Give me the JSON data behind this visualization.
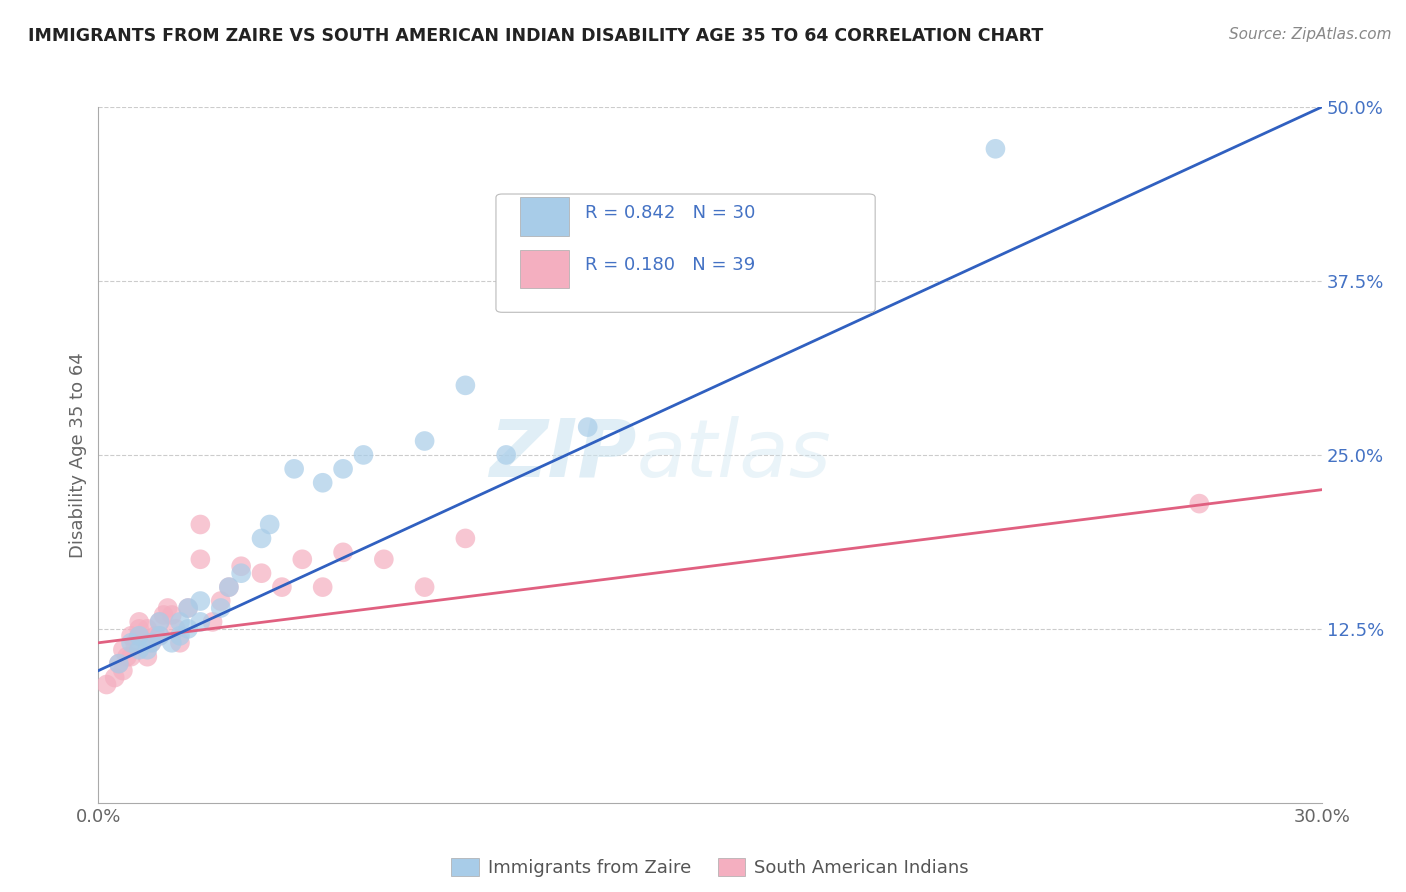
{
  "title": "IMMIGRANTS FROM ZAIRE VS SOUTH AMERICAN INDIAN DISABILITY AGE 35 TO 64 CORRELATION CHART",
  "source": "Source: ZipAtlas.com",
  "ylabel": "Disability Age 35 to 64",
  "xlim": [
    0.0,
    0.3
  ],
  "ylim": [
    0.0,
    0.5
  ],
  "xtick_labels": [
    "0.0%",
    "30.0%"
  ],
  "ytick_labels": [
    "12.5%",
    "25.0%",
    "37.5%",
    "50.0%"
  ],
  "ytick_values": [
    0.125,
    0.25,
    0.375,
    0.5
  ],
  "series1_name": "Immigrants from Zaire",
  "series2_name": "South American Indians",
  "series1_color": "#a8cce8",
  "series2_color": "#f4afc0",
  "series1_line_color": "#3060c0",
  "series2_line_color": "#e06080",
  "ytick_color": "#4472c4",
  "watermark_color": "#cce4f0",
  "background_color": "#ffffff",
  "grid_color": "#cccccc",
  "scatter1_x": [
    0.005,
    0.008,
    0.01,
    0.01,
    0.012,
    0.013,
    0.015,
    0.015,
    0.018,
    0.02,
    0.02,
    0.022,
    0.022,
    0.025,
    0.025,
    0.03,
    0.032,
    0.035,
    0.04,
    0.042,
    0.048,
    0.055,
    0.06,
    0.065,
    0.08,
    0.09,
    0.1,
    0.12,
    0.17,
    0.22
  ],
  "scatter1_y": [
    0.1,
    0.115,
    0.11,
    0.12,
    0.11,
    0.115,
    0.12,
    0.13,
    0.115,
    0.12,
    0.13,
    0.125,
    0.14,
    0.13,
    0.145,
    0.14,
    0.155,
    0.165,
    0.19,
    0.2,
    0.24,
    0.23,
    0.24,
    0.25,
    0.26,
    0.3,
    0.25,
    0.27,
    0.38,
    0.47
  ],
  "scatter2_x": [
    0.002,
    0.004,
    0.005,
    0.006,
    0.006,
    0.007,
    0.008,
    0.008,
    0.009,
    0.01,
    0.01,
    0.01,
    0.012,
    0.012,
    0.013,
    0.014,
    0.015,
    0.015,
    0.016,
    0.017,
    0.018,
    0.019,
    0.02,
    0.022,
    0.025,
    0.025,
    0.028,
    0.03,
    0.032,
    0.035,
    0.04,
    0.045,
    0.05,
    0.055,
    0.06,
    0.07,
    0.08,
    0.09,
    0.27
  ],
  "scatter2_y": [
    0.085,
    0.09,
    0.1,
    0.11,
    0.095,
    0.105,
    0.12,
    0.105,
    0.115,
    0.12,
    0.125,
    0.13,
    0.105,
    0.125,
    0.115,
    0.12,
    0.13,
    0.12,
    0.135,
    0.14,
    0.135,
    0.125,
    0.115,
    0.14,
    0.175,
    0.2,
    0.13,
    0.145,
    0.155,
    0.17,
    0.165,
    0.155,
    0.175,
    0.155,
    0.18,
    0.175,
    0.155,
    0.19,
    0.215
  ],
  "line1_x": [
    0.0,
    0.3
  ],
  "line1_y": [
    0.095,
    0.5
  ],
  "line2_x": [
    0.0,
    0.3
  ],
  "line2_y": [
    0.115,
    0.225
  ]
}
